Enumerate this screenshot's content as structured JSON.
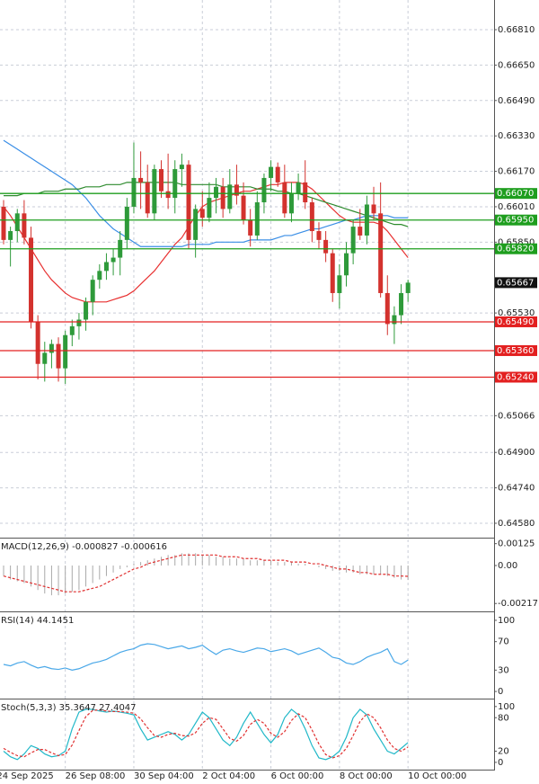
{
  "chart_data": [
    {
      "type": "candlestick",
      "candles": {
        "open": [
          0.6601,
          0.6586,
          0.659,
          0.6598,
          0.6587,
          0.6549,
          0.653,
          0.6535,
          0.6539,
          0.6528,
          0.6543,
          0.6547,
          0.655,
          0.6558,
          0.6568,
          0.6572,
          0.6576,
          0.6578,
          0.6586,
          0.6601,
          0.6614,
          0.6612,
          0.6598,
          0.6618,
          0.6608,
          0.6605,
          0.6618,
          0.662,
          0.6586,
          0.66,
          0.6596,
          0.6605,
          0.661,
          0.66,
          0.6611,
          0.6606,
          0.6595,
          0.6588,
          0.6603,
          0.6614,
          0.6619,
          0.6612,
          0.6598,
          0.6607,
          0.6612,
          0.6603,
          0.659,
          0.6586,
          0.658,
          0.6562,
          0.657,
          0.658,
          0.6592,
          0.6588,
          0.6602,
          0.6598,
          0.6562,
          0.6548,
          0.6552,
          0.6562
        ],
        "high": [
          0.6604,
          0.6592,
          0.66,
          0.6604,
          0.6592,
          0.6552,
          0.654,
          0.6541,
          0.6542,
          0.6545,
          0.655,
          0.6553,
          0.656,
          0.657,
          0.6575,
          0.658,
          0.6582,
          0.659,
          0.6605,
          0.663,
          0.6626,
          0.662,
          0.662,
          0.6622,
          0.6625,
          0.6622,
          0.6625,
          0.6622,
          0.6602,
          0.6608,
          0.6612,
          0.6614,
          0.6614,
          0.6618,
          0.662,
          0.6612,
          0.66,
          0.6608,
          0.6616,
          0.6622,
          0.6621,
          0.662,
          0.6612,
          0.6616,
          0.6622,
          0.6605,
          0.6594,
          0.659,
          0.6582,
          0.6575,
          0.6585,
          0.6595,
          0.66,
          0.6606,
          0.661,
          0.6612,
          0.657,
          0.6556,
          0.6566,
          0.6568
        ],
        "low": [
          0.6584,
          0.6574,
          0.6585,
          0.6584,
          0.6546,
          0.6523,
          0.6522,
          0.6528,
          0.6522,
          0.6521,
          0.6538,
          0.6541,
          0.6545,
          0.6552,
          0.6564,
          0.6568,
          0.657,
          0.657,
          0.6582,
          0.6598,
          0.66,
          0.6596,
          0.6595,
          0.6605,
          0.66,
          0.6598,
          0.661,
          0.6582,
          0.6578,
          0.6592,
          0.6594,
          0.6598,
          0.6596,
          0.6598,
          0.6602,
          0.6593,
          0.6583,
          0.6586,
          0.6598,
          0.6608,
          0.661,
          0.6596,
          0.6594,
          0.6604,
          0.66,
          0.6585,
          0.6582,
          0.6576,
          0.6558,
          0.6555,
          0.6565,
          0.6575,
          0.6586,
          0.6584,
          0.6595,
          0.656,
          0.6543,
          0.6539,
          0.6548,
          0.6558
        ],
        "close": [
          0.6586,
          0.659,
          0.6598,
          0.6587,
          0.6549,
          0.653,
          0.6535,
          0.6539,
          0.6528,
          0.6543,
          0.6547,
          0.655,
          0.6558,
          0.6568,
          0.6572,
          0.6576,
          0.6578,
          0.6586,
          0.6601,
          0.6614,
          0.6612,
          0.6598,
          0.6618,
          0.6608,
          0.6605,
          0.6618,
          0.662,
          0.6586,
          0.66,
          0.6596,
          0.6605,
          0.661,
          0.66,
          0.6611,
          0.6606,
          0.6595,
          0.6588,
          0.6603,
          0.6614,
          0.6619,
          0.6612,
          0.6598,
          0.6607,
          0.6612,
          0.6603,
          0.659,
          0.6586,
          0.658,
          0.6562,
          0.657,
          0.658,
          0.6592,
          0.6588,
          0.6602,
          0.6598,
          0.6562,
          0.6548,
          0.6552,
          0.6562,
          0.65667
        ]
      },
      "up_color": "#2e9a3a",
      "down_color": "#d3322e",
      "series": [
        {
          "color": "#e83030",
          "values": [
            0.6601,
            0.6597,
            0.6592,
            0.6587,
            0.6582,
            0.6577,
            0.6572,
            0.6568,
            0.6565,
            0.6562,
            0.656,
            0.6559,
            0.6558,
            0.6558,
            0.6558,
            0.6558,
            0.6559,
            0.656,
            0.6561,
            0.6563,
            0.6566,
            0.6569,
            0.6572,
            0.6576,
            0.658,
            0.6584,
            0.6587,
            0.6592,
            0.6597,
            0.6601,
            0.6603,
            0.6604,
            0.6605,
            0.6606,
            0.6607,
            0.6608,
            0.6608,
            0.6609,
            0.661,
            0.6611,
            0.6611,
            0.6612,
            0.6612,
            0.6612,
            0.6611,
            0.6609,
            0.6606,
            0.6603,
            0.66,
            0.6597,
            0.6595,
            0.6594,
            0.6594,
            0.6594,
            0.6594,
            0.6593,
            0.659,
            0.6586,
            0.6582,
            0.6578
          ]
        },
        {
          "color": "#3a8ee6",
          "values": [
            0.6631,
            0.6629,
            0.6627,
            0.6625,
            0.6623,
            0.6621,
            0.6619,
            0.6617,
            0.6615,
            0.6613,
            0.6611,
            0.6608,
            0.6605,
            0.6601,
            0.6597,
            0.6594,
            0.6591,
            0.6589,
            0.6587,
            0.6585,
            0.6583,
            0.6583,
            0.6583,
            0.6583,
            0.6583,
            0.6583,
            0.6583,
            0.6584,
            0.6584,
            0.6584,
            0.6584,
            0.6585,
            0.6585,
            0.6585,
            0.6585,
            0.6585,
            0.6586,
            0.6586,
            0.6586,
            0.6586,
            0.6587,
            0.6588,
            0.6588,
            0.6589,
            0.659,
            0.6591,
            0.6591,
            0.6592,
            0.6593,
            0.6594,
            0.6595,
            0.6595,
            0.6596,
            0.6597,
            0.6597,
            0.6597,
            0.6597,
            0.6596,
            0.6596,
            0.6596
          ]
        },
        {
          "color": "#2e8b2e",
          "values": [
            0.6606,
            0.6606,
            0.6606,
            0.6607,
            0.6607,
            0.6607,
            0.6608,
            0.6608,
            0.6608,
            0.6609,
            0.6609,
            0.6609,
            0.661,
            0.661,
            0.661,
            0.6611,
            0.6611,
            0.6611,
            0.6612,
            0.6612,
            0.6612,
            0.6612,
            0.6612,
            0.6612,
            0.6612,
            0.6612,
            0.6611,
            0.6611,
            0.6611,
            0.6611,
            0.6611,
            0.6611,
            0.661,
            0.661,
            0.661,
            0.661,
            0.661,
            0.6609,
            0.6609,
            0.6609,
            0.6608,
            0.6608,
            0.6607,
            0.6607,
            0.6606,
            0.6605,
            0.6604,
            0.6603,
            0.6602,
            0.6601,
            0.66,
            0.6599,
            0.6598,
            0.6597,
            0.6596,
            0.6595,
            0.6594,
            0.6593,
            0.6593,
            0.6592
          ]
        }
      ],
      "levels": [
        {
          "value": 0.6607,
          "label": "0.66070",
          "color": "#1e9e1e"
        },
        {
          "value": 0.6595,
          "label": "0.65950",
          "color": "#1e9e1e"
        },
        {
          "value": 0.6582,
          "label": "0.65820",
          "color": "#1e9e1e"
        },
        {
          "value": 0.6549,
          "label": "0.65490",
          "color": "#e32020"
        },
        {
          "value": 0.6536,
          "label": "0.65360",
          "color": "#e32020"
        },
        {
          "value": 0.6524,
          "label": "0.65240",
          "color": "#e32020"
        }
      ],
      "current": 0.65667,
      "ylim": [
        0.66944,
        0.64515
      ],
      "yticks": [
        {
          "value": 0.6681,
          "label": "0.66810"
        },
        {
          "value": 0.6665,
          "label": "0.66650"
        },
        {
          "value": 0.6649,
          "label": "0.66490"
        },
        {
          "value": 0.6633,
          "label": "0.66330"
        },
        {
          "value": 0.6617,
          "label": "0.66170"
        },
        {
          "value": 0.6601,
          "label": "0.66010"
        },
        {
          "value": 0.6585,
          "label": "0.65850"
        },
        {
          "value": 0.6553,
          "label": "0.65530"
        },
        0.65066,
        {
          "value": 0.649,
          "label": "0.64900"
        },
        {
          "value": 0.6474,
          "label": "0.64740"
        },
        {
          "value": 0.6458,
          "label": "0.64580"
        }
      ],
      "xticks": [
        {
          "value": -1,
          "label": "24 Sep 2025"
        },
        {
          "value": 9,
          "label": "26 Sep 08:00"
        },
        {
          "value": 19,
          "label": "30 Sep 04:00"
        },
        {
          "value": 29,
          "label": "2 Oct 04:00"
        },
        {
          "value": 39,
          "label": "6 Oct 00:00"
        },
        {
          "value": 49,
          "label": "8 Oct 00:00"
        },
        {
          "value": 59,
          "label": "10 Oct 00:00"
        }
      ]
    },
    {
      "type": "macd",
      "title": "MACD(12,26,9) -0.000827 -0.000616",
      "values": [
        -0.0006,
        -0.0008,
        -0.0009,
        -0.001,
        -0.0012,
        -0.0014,
        -0.0016,
        -0.0017,
        -0.0017,
        -0.0016,
        -0.0015,
        -0.0014,
        -0.0012,
        -0.001,
        -0.0008,
        -0.0006,
        -0.0004,
        -0.0002,
        -0.0001,
        0.0001,
        0.0002,
        0.0003,
        0.0004,
        0.0005,
        0.0006,
        0.0006,
        0.0007,
        0.0007,
        0.0007,
        0.0006,
        0.0006,
        0.0005,
        0.0005,
        0.0004,
        0.0004,
        0.0004,
        0.0003,
        0.0003,
        0.0003,
        0.0003,
        0.0002,
        0.0002,
        0.0002,
        0.0001,
        0.0001,
        0,
        -0.0001,
        -0.0002,
        -0.0003,
        -0.0003,
        -0.0004,
        -0.0004,
        -0.0005,
        -0.0005,
        -0.0005,
        -0.0005,
        -0.0006,
        -0.0007,
        -0.0008,
        -0.000827
      ],
      "color": "#a9a9a9",
      "signal": [
        -0.0006,
        -0.0007,
        -0.0008,
        -0.0009,
        -0.001,
        -0.0011,
        -0.0012,
        -0.0013,
        -0.0014,
        -0.0015,
        -0.0015,
        -0.0015,
        -0.0014,
        -0.0013,
        -0.0012,
        -0.001,
        -0.0008,
        -0.0006,
        -0.0004,
        -0.0002,
        -0.0001,
        0.0001,
        0.0002,
        0.0003,
        0.0004,
        0.0005,
        0.0006,
        0.0006,
        0.0006,
        0.0006,
        0.0006,
        0.0006,
        0.0005,
        0.0005,
        0.0005,
        0.0004,
        0.0004,
        0.0004,
        0.0003,
        0.0003,
        0.0003,
        0.0003,
        0.0002,
        0.0002,
        0.0002,
        0.0001,
        0.0001,
        0,
        -0.0001,
        -0.0002,
        -0.0002,
        -0.0003,
        -0.0004,
        -0.0004,
        -0.0005,
        -0.0005,
        -0.0005,
        -0.0006,
        -0.0006,
        -0.000616
      ],
      "signal_color": "#e03030",
      "ylim": [
        0.00149,
        -0.00262
      ],
      "yticks": [
        0.00125,
        {
          "value": 0,
          "label": "0.00"
        },
        -0.00217
      ]
    },
    {
      "type": "line",
      "title": "RSI(14) 44.1451",
      "series": [
        {
          "color": "#4aa8e8",
          "values": [
            38,
            36,
            40,
            42,
            37,
            33,
            35,
            32,
            31,
            33,
            30,
            32,
            36,
            40,
            42,
            45,
            50,
            55,
            58,
            60,
            65,
            67,
            66,
            63,
            60,
            62,
            64,
            60,
            62,
            65,
            58,
            52,
            58,
            60,
            57,
            55,
            58,
            61,
            60,
            56,
            58,
            60,
            57,
            52,
            55,
            58,
            61,
            55,
            48,
            46,
            40,
            38,
            42,
            48,
            52,
            55,
            60,
            42,
            38,
            44.1451
          ]
        }
      ],
      "ylim": [
        110,
        -10
      ],
      "yticks": [
        100,
        70,
        30,
        0
      ]
    },
    {
      "type": "line",
      "title": "Stoch(5,3,3) 35.3647 27.4047",
      "series": [
        {
          "color": "#20b8c8",
          "values": [
            20,
            10,
            5,
            15,
            30,
            25,
            15,
            10,
            12,
            20,
            60,
            90,
            95,
            95,
            92,
            90,
            92,
            90,
            88,
            85,
            60,
            40,
            45,
            50,
            55,
            50,
            40,
            50,
            70,
            90,
            80,
            60,
            40,
            30,
            45,
            70,
            90,
            70,
            50,
            35,
            50,
            80,
            95,
            85,
            60,
            30,
            8,
            5,
            10,
            20,
            45,
            80,
            95,
            85,
            60,
            40,
            20,
            15,
            25,
            35.3647
          ]
        },
        {
          "color": "#e03030",
          "dashed": true,
          "values": [
            25,
            18,
            12,
            10,
            17,
            23,
            23,
            17,
            12,
            14,
            31,
            57,
            82,
            93,
            94,
            92,
            91,
            91,
            90,
            88,
            78,
            62,
            48,
            45,
            50,
            52,
            48,
            47,
            53,
            70,
            80,
            77,
            60,
            43,
            38,
            48,
            68,
            77,
            70,
            52,
            45,
            55,
            75,
            87,
            80,
            58,
            33,
            14,
            8,
            12,
            25,
            48,
            73,
            87,
            80,
            62,
            40,
            25,
            20,
            27.4047
          ]
        }
      ],
      "ylim": [
        111,
        -13
      ],
      "yticks": [
        100,
        80,
        20,
        0
      ]
    }
  ]
}
